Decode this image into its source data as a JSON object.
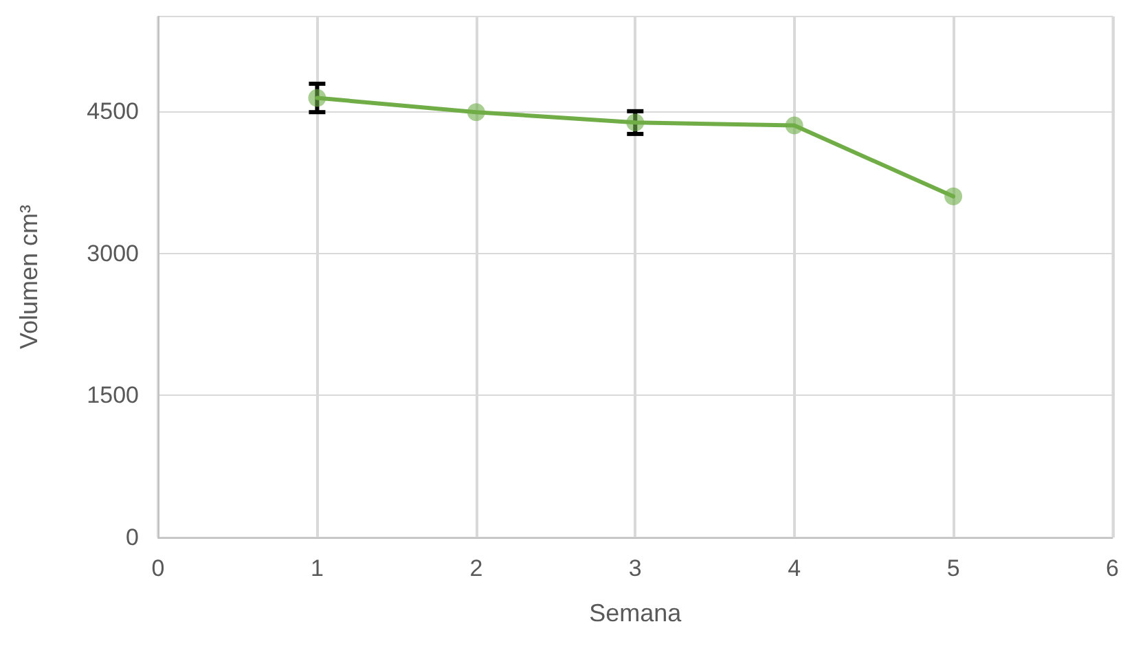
{
  "chart_data": {
    "type": "line",
    "xlabel": "Semana",
    "ylabel": "Volumen cm³",
    "x": [
      1,
      2,
      3,
      4,
      5
    ],
    "series": [
      {
        "color": "#70ad47",
        "values": [
          4640,
          4490,
          4380,
          4350,
          3600
        ],
        "errors": [
          150,
          null,
          120,
          null,
          null
        ]
      }
    ],
    "xlim": [
      0,
      6
    ],
    "xticks": [
      0,
      1,
      2,
      3,
      4,
      5,
      6
    ],
    "ylim": [
      0,
      5500
    ],
    "yticks": [
      0,
      1500,
      3000,
      4500
    ],
    "grid": true,
    "marker": "circle",
    "line_style": "solid"
  }
}
